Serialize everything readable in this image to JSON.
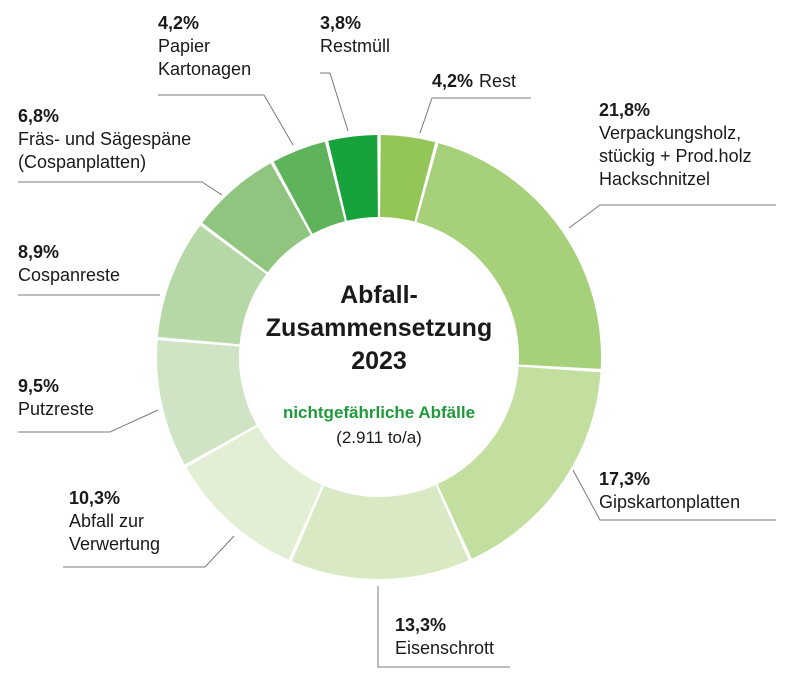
{
  "chart_data": {
    "type": "pie",
    "variant": "donut",
    "title_lines": [
      "Abfall-",
      "Zusammensetzung",
      "2023"
    ],
    "subtitle": "nichtgefährliche Abfälle",
    "subtitle_note": "(2.911 to/a)",
    "accent_color": "#1f9a3a",
    "slices": [
      {
        "key": "rest",
        "value": 4.2,
        "pct_label": "4,2%",
        "label_lines": [
          "Rest"
        ],
        "color": "#93c557"
      },
      {
        "key": "verpackung",
        "value": 21.8,
        "pct_label": "21,8%",
        "label_lines": [
          "Verpackungsholz,",
          "stückig + Prod.holz",
          "Hackschnitzel"
        ],
        "color": "#a7d07a"
      },
      {
        "key": "gips",
        "value": 17.3,
        "pct_label": "17,3%",
        "label_lines": [
          "Gipskartonplatten"
        ],
        "color": "#c3df9f"
      },
      {
        "key": "eisen",
        "value": 13.3,
        "pct_label": "13,3%",
        "label_lines": [
          "Eisenschrott"
        ],
        "color": "#d8e9c3"
      },
      {
        "key": "verwertung",
        "value": 10.3,
        "pct_label": "10,3%",
        "label_lines": [
          "Abfall zur",
          "Verwertung"
        ],
        "color": "#e3efd4"
      },
      {
        "key": "putz",
        "value": 9.5,
        "pct_label": "9,5%",
        "label_lines": [
          "Putzreste"
        ],
        "color": "#cfe4c5"
      },
      {
        "key": "cospan",
        "value": 8.9,
        "pct_label": "8,9%",
        "label_lines": [
          "Cospanreste"
        ],
        "color": "#b6d8a7"
      },
      {
        "key": "fraes",
        "value": 6.8,
        "pct_label": "6,8%",
        "label_lines": [
          "Fräs- und Sägespäne",
          "(Cospanplatten)"
        ],
        "color": "#8fc57e"
      },
      {
        "key": "papier",
        "value": 4.2,
        "pct_label": "4,2%",
        "label_lines": [
          "Papier",
          "Kartonagen"
        ],
        "color": "#5fb35a"
      },
      {
        "key": "restmuell",
        "value": 3.8,
        "pct_label": "3,8%",
        "label_lines": [
          "Restmüll"
        ],
        "color": "#17a23b"
      }
    ]
  }
}
